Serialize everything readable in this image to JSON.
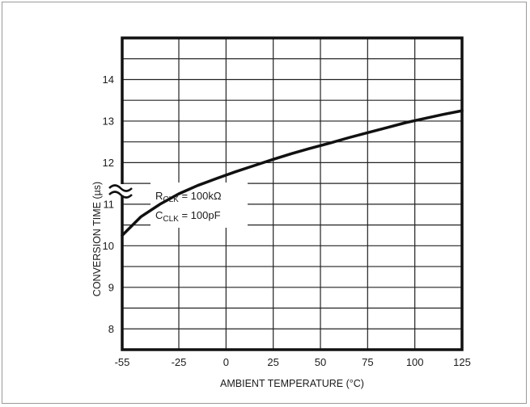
{
  "chart_data": {
    "type": "line",
    "xlabel": "AMBIENT TEMPERATURE (°C)",
    "ylabel": "CONVERSION TIME (µs)",
    "xlim": [
      -55,
      125
    ],
    "ylim": [
      7.5,
      14.5
    ],
    "x_ticks": [
      "-55",
      "-25",
      "0",
      "25",
      "50",
      "75",
      "100",
      "125"
    ],
    "x_tick_values": [
      -55,
      -25,
      0,
      25,
      50,
      75,
      100,
      125
    ],
    "y_ticks": [
      "8",
      "9",
      "10",
      "11",
      "12",
      "13",
      "14"
    ],
    "y_tick_values": [
      8,
      9,
      10,
      11,
      12,
      13,
      14
    ],
    "y_axis_break": true,
    "grid": true,
    "annotations": [
      {
        "main": "R",
        "sub": "CLK",
        "rest": " = 100kΩ"
      },
      {
        "main": "C",
        "sub": "CLK",
        "rest": " = 100pF"
      }
    ],
    "series": [
      {
        "x": [
          -55,
          -45,
          -35,
          -25,
          -15,
          -5,
          5,
          15,
          25,
          35,
          45,
          55,
          65,
          75,
          85,
          95,
          105,
          115,
          125
        ],
        "y": [
          10.25,
          10.7,
          11.0,
          11.25,
          11.45,
          11.62,
          11.78,
          11.93,
          12.08,
          12.22,
          12.35,
          12.47,
          12.6,
          12.72,
          12.84,
          12.96,
          13.06,
          13.16,
          13.25
        ]
      }
    ]
  }
}
